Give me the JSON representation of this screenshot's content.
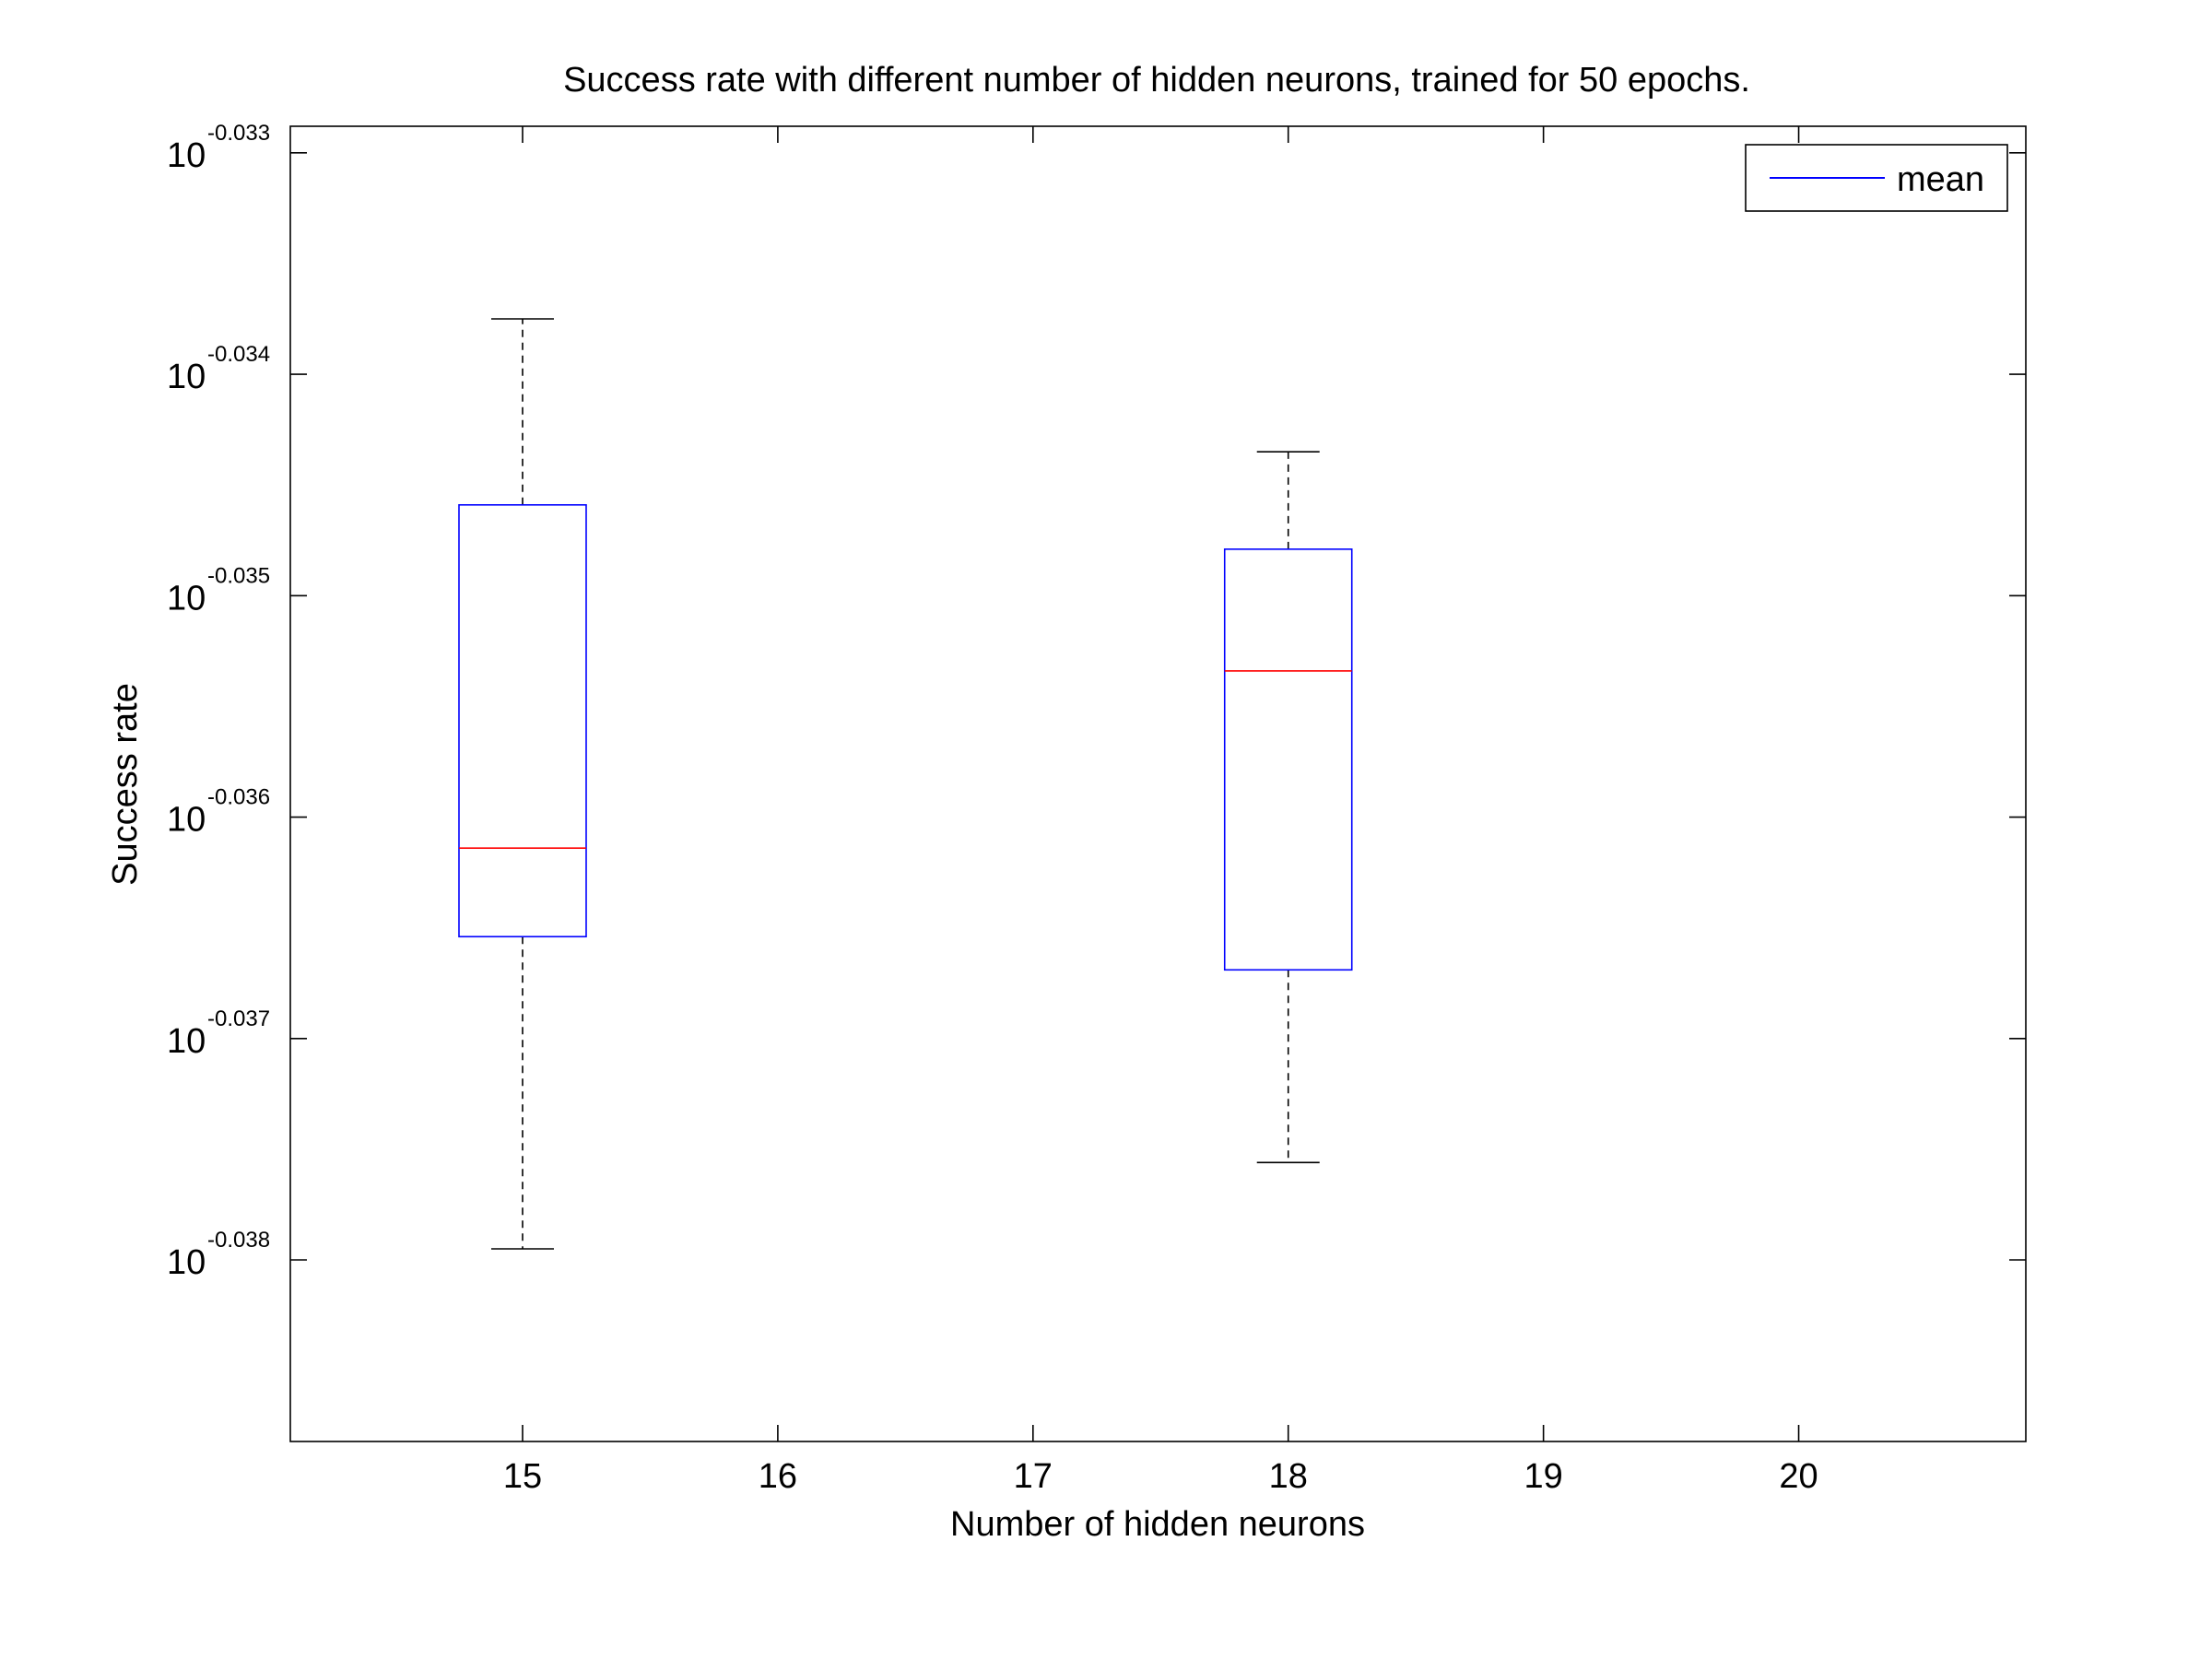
{
  "chart_data": {
    "type": "boxplot",
    "title": "Success rate with different number of hidden neurons, trained for 50 epochs.",
    "xlabel": "Number of hidden neurons",
    "ylabel": "Success rate",
    "x_ticks": [
      "15",
      "16",
      "17",
      "18",
      "19",
      "20"
    ],
    "xlim": [
      14.09,
      20.89
    ],
    "y_scale": "log10",
    "y_tick_base": "10",
    "y_tick_exponents": [
      "-0.033",
      "-0.034",
      "-0.035",
      "-0.036",
      "-0.037",
      "-0.038"
    ],
    "ylim_log10": [
      -0.03882,
      -0.03288
    ],
    "boxes": [
      {
        "x": 15,
        "whisker_low_log10": -0.03795,
        "q1_log10": -0.03654,
        "median_log10": -0.03614,
        "q3_log10": -0.03459,
        "whisker_high_log10": -0.03375
      },
      {
        "x": 18,
        "whisker_low_log10": -0.03756,
        "q1_log10": -0.03669,
        "median_log10": -0.03534,
        "q3_log10": -0.03479,
        "whisker_high_log10": -0.03435
      }
    ],
    "legend": {
      "position": "top-right",
      "entries": [
        {
          "label": "mean",
          "color": "#0000ff"
        }
      ]
    },
    "colors": {
      "box": "#0000ff",
      "median": "#ff0000",
      "whisker": "#000000"
    },
    "grid": false
  }
}
